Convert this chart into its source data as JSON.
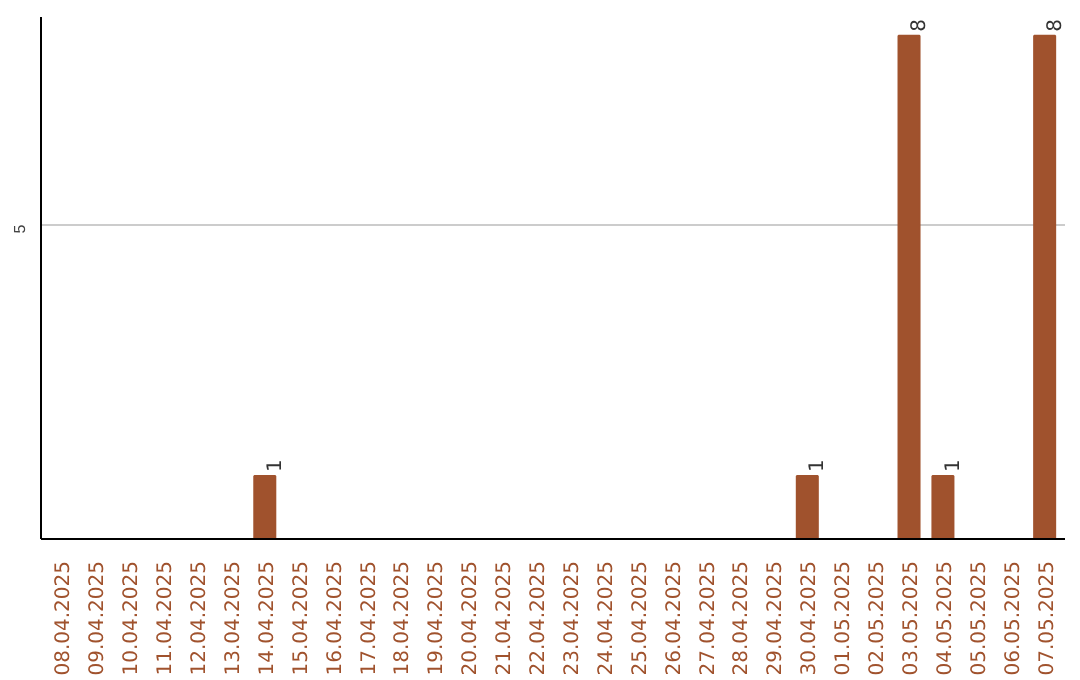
{
  "chart_data": {
    "type": "bar",
    "categories": [
      "08.04.2025",
      "09.04.2025",
      "10.04.2025",
      "11.04.2025",
      "12.04.2025",
      "13.04.2025",
      "14.04.2025",
      "15.04.2025",
      "16.04.2025",
      "17.04.2025",
      "18.04.2025",
      "19.04.2025",
      "20.04.2025",
      "21.04.2025",
      "22.04.2025",
      "23.04.2025",
      "24.04.2025",
      "25.04.2025",
      "26.04.2025",
      "27.04.2025",
      "28.04.2025",
      "29.04.2025",
      "30.04.2025",
      "01.05.2025",
      "02.05.2025",
      "03.05.2025",
      "04.05.2025",
      "05.05.2025",
      "06.05.2025",
      "07.05.2025"
    ],
    "values": [
      0,
      0,
      0,
      0,
      0,
      0,
      1,
      0,
      0,
      0,
      0,
      0,
      0,
      0,
      0,
      0,
      0,
      0,
      0,
      0,
      0,
      0,
      1,
      0,
      0,
      8,
      1,
      0,
      0,
      8
    ],
    "value_labels": [
      null,
      null,
      null,
      null,
      null,
      null,
      "1",
      null,
      null,
      null,
      null,
      null,
      null,
      null,
      null,
      null,
      null,
      null,
      null,
      null,
      null,
      null,
      "1",
      null,
      null,
      "8",
      "1",
      null,
      null,
      "8"
    ],
    "color": "#a0522d",
    "ylim": [
      0,
      8.3
    ],
    "yticks": [
      5
    ],
    "grid": "y"
  }
}
